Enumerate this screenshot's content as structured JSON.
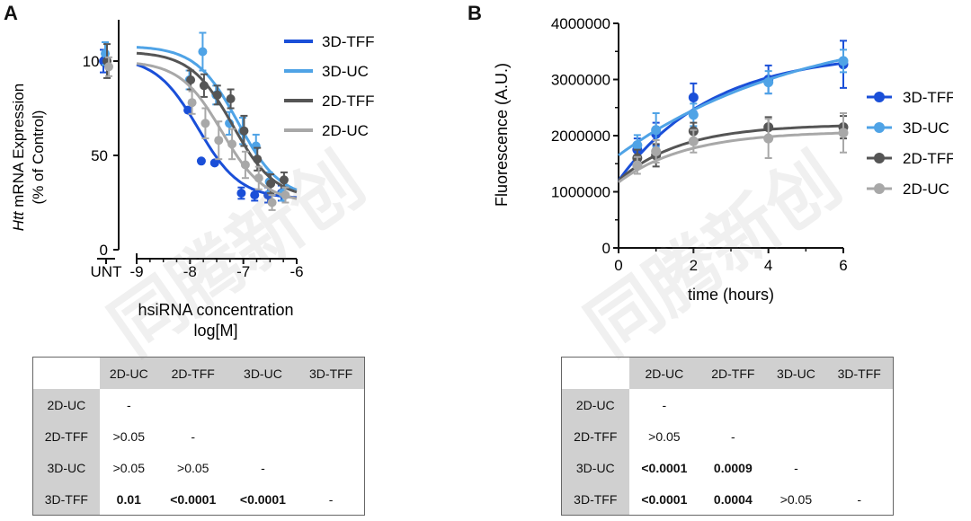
{
  "panels": {
    "a": "A",
    "b": "B"
  },
  "colors": {
    "3D-TFF": "#1a4fd8",
    "3D-UC": "#4fa3e6",
    "2D-TFF": "#555555",
    "2D-UC": "#a8a8a8"
  },
  "watermark": "同腾新创",
  "chart_data": [
    {
      "type": "line",
      "panel": "A",
      "ylabel_italic": "Htt",
      "ylabel_rest": " mRNA Expression",
      "ylabel2": "(% of Control)",
      "xlabel": "hsiRNA concentration",
      "xlabel2": "log[M]",
      "xticks": [
        "-9",
        "-8",
        "-7",
        "-6"
      ],
      "extra_xtick": "UNT",
      "yticks": [
        "0",
        "50",
        "100"
      ],
      "xlim": [
        -9,
        -6
      ],
      "ylim": [
        0,
        120
      ],
      "legend": "top-right",
      "series": [
        {
          "name": "3D-TFF",
          "color": "#1a4fd8",
          "unt": {
            "y": 100,
            "err": 6
          },
          "points": [
            {
              "x": -8,
              "y": 74,
              "err": 0
            },
            {
              "x": -7.75,
              "y": 47,
              "err": 0
            },
            {
              "x": -7.5,
              "y": 46,
              "err": 0
            },
            {
              "x": -7,
              "y": 30,
              "err": 3
            },
            {
              "x": -6.75,
              "y": 29,
              "err": 3
            },
            {
              "x": -6.5,
              "y": 29,
              "err": 4
            },
            {
              "x": -6.25,
              "y": 30,
              "err": 4
            }
          ],
          "curve": {
            "top": 102,
            "bottom": 27,
            "ec50": -7.85,
            "hill": 1.1
          }
        },
        {
          "name": "3D-UC",
          "color": "#4fa3e6",
          "unt": {
            "y": 104,
            "err": 6
          },
          "points": [
            {
              "x": -8,
              "y": 90,
              "err": 5
            },
            {
              "x": -7.75,
              "y": 105,
              "err": 10
            },
            {
              "x": -7.5,
              "y": 82,
              "err": 5
            },
            {
              "x": -7.25,
              "y": 67,
              "err": 6
            },
            {
              "x": -7,
              "y": 63,
              "err": 7
            },
            {
              "x": -6.75,
              "y": 55,
              "err": 6
            },
            {
              "x": -6.5,
              "y": 36,
              "err": 5
            },
            {
              "x": -6.25,
              "y": 30,
              "err": 4
            }
          ],
          "curve": {
            "top": 108,
            "bottom": 27,
            "ec50": -7.1,
            "hill": 1.1
          }
        },
        {
          "name": "2D-TFF",
          "color": "#555555",
          "unt": {
            "y": 100,
            "err": 9
          },
          "points": [
            {
              "x": -8,
              "y": 90,
              "err": 5
            },
            {
              "x": -7.75,
              "y": 87,
              "err": 6
            },
            {
              "x": -7.5,
              "y": 82,
              "err": 5
            },
            {
              "x": -7.25,
              "y": 80,
              "err": 5
            },
            {
              "x": -7,
              "y": 63,
              "err": 8
            },
            {
              "x": -6.75,
              "y": 48,
              "err": 6
            },
            {
              "x": -6.5,
              "y": 35,
              "err": 5
            },
            {
              "x": -6.25,
              "y": 37,
              "err": 4
            }
          ],
          "curve": {
            "top": 105,
            "bottom": 27,
            "ec50": -7.2,
            "hill": 1.1
          }
        },
        {
          "name": "2D-UC",
          "color": "#a8a8a8",
          "unt": {
            "y": 97,
            "err": 5
          },
          "points": [
            {
              "x": -8,
              "y": 78,
              "err": 6
            },
            {
              "x": -7.75,
              "y": 67,
              "err": 8
            },
            {
              "x": -7.5,
              "y": 58,
              "err": 10
            },
            {
              "x": -7.25,
              "y": 56,
              "err": 8
            },
            {
              "x": -7,
              "y": 45,
              "err": 7
            },
            {
              "x": -6.75,
              "y": 38,
              "err": 6
            },
            {
              "x": -6.5,
              "y": 25,
              "err": 4
            },
            {
              "x": -6.25,
              "y": 29,
              "err": 4
            }
          ],
          "curve": {
            "top": 100,
            "bottom": 25,
            "ec50": -7.4,
            "hill": 1.1
          }
        }
      ]
    },
    {
      "type": "line",
      "panel": "B",
      "ylabel": "Fluorescence (A.U.)",
      "xlabel": "time (hours)",
      "xticks": [
        "0",
        "2",
        "4",
        "6"
      ],
      "yticks": [
        "0",
        "1000000",
        "2000000",
        "3000000",
        "4000000"
      ],
      "xlim": [
        0,
        6
      ],
      "ylim": [
        0,
        4000000
      ],
      "legend": "right",
      "series": [
        {
          "name": "3D-TFF",
          "color": "#1a4fd8",
          "points": [
            {
              "x": 0.5,
              "y": 1750000,
              "err": 200000
            },
            {
              "x": 1,
              "y": 2030000,
              "err": 200000
            },
            {
              "x": 2,
              "y": 2680000,
              "err": 250000
            },
            {
              "x": 4,
              "y": 3000000,
              "err": 250000
            },
            {
              "x": 6,
              "y": 3270000,
              "err": 420000
            }
          ],
          "curve": {
            "y0": 1200000,
            "plateau": 3500000,
            "k": 0.4
          }
        },
        {
          "name": "3D-UC",
          "color": "#4fa3e6",
          "points": [
            {
              "x": 0.5,
              "y": 1830000,
              "err": 180000
            },
            {
              "x": 1,
              "y": 2100000,
              "err": 300000
            },
            {
              "x": 2,
              "y": 2370000,
              "err": 200000
            },
            {
              "x": 4,
              "y": 2950000,
              "err": 200000
            },
            {
              "x": 6,
              "y": 3330000,
              "err": 200000
            }
          ],
          "curve": {
            "y0": 1650000,
            "plateau": 4100000,
            "k": 0.2
          }
        },
        {
          "name": "2D-TFF",
          "color": "#555555",
          "points": [
            {
              "x": 0.5,
              "y": 1600000,
              "err": 150000
            },
            {
              "x": 1,
              "y": 1650000,
              "err": 200000
            },
            {
              "x": 2,
              "y": 2080000,
              "err": 150000
            },
            {
              "x": 4,
              "y": 2150000,
              "err": 180000
            },
            {
              "x": 6,
              "y": 2150000,
              "err": 200000
            }
          ],
          "curve": {
            "y0": 1200000,
            "plateau": 2200000,
            "k": 0.6
          }
        },
        {
          "name": "2D-UC",
          "color": "#a8a8a8",
          "points": [
            {
              "x": 0.5,
              "y": 1470000,
              "err": 150000
            },
            {
              "x": 1,
              "y": 1720000,
              "err": 200000
            },
            {
              "x": 2,
              "y": 1900000,
              "err": 200000
            },
            {
              "x": 4,
              "y": 1950000,
              "err": 350000
            },
            {
              "x": 6,
              "y": 2050000,
              "err": 350000
            }
          ],
          "curve": {
            "y0": 1170000,
            "plateau": 2080000,
            "k": 0.55
          }
        }
      ]
    }
  ],
  "tables": {
    "a": {
      "columns": [
        "",
        "2D-UC",
        "2D-TFF",
        "3D-UC",
        "3D-TFF"
      ],
      "rows": [
        {
          "label": "2D-UC",
          "cells": [
            "-",
            "",
            "",
            ""
          ]
        },
        {
          "label": "2D-TFF",
          "cells": [
            ">0.05",
            "-",
            "",
            ""
          ]
        },
        {
          "label": "3D-UC",
          "cells": [
            ">0.05",
            ">0.05",
            "-",
            ""
          ]
        },
        {
          "label": "3D-TFF",
          "cells": [
            "0.01",
            "<0.0001",
            "<0.0001",
            "-"
          ]
        }
      ],
      "bold": [
        [
          3,
          0
        ],
        [
          3,
          1
        ],
        [
          3,
          2
        ]
      ]
    },
    "b": {
      "columns": [
        "",
        "2D-UC",
        "2D-TFF",
        "3D-UC",
        "3D-TFF"
      ],
      "rows": [
        {
          "label": "2D-UC",
          "cells": [
            "-",
            "",
            "",
            ""
          ]
        },
        {
          "label": "2D-TFF",
          "cells": [
            ">0.05",
            "-",
            "",
            ""
          ]
        },
        {
          "label": "3D-UC",
          "cells": [
            "<0.0001",
            "0.0009",
            "-",
            ""
          ]
        },
        {
          "label": "3D-TFF",
          "cells": [
            "<0.0001",
            "0.0004",
            ">0.05",
            "-"
          ]
        }
      ],
      "bold": [
        [
          2,
          0
        ],
        [
          2,
          1
        ],
        [
          3,
          0
        ],
        [
          3,
          1
        ]
      ]
    }
  }
}
